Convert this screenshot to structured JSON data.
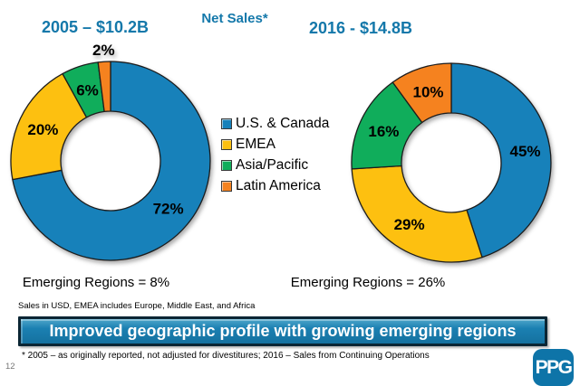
{
  "slide": {
    "net_sales_title": "Net Sales*",
    "sales_note": "Sales in USD, EMEA includes Europe, Middle East, and Africa",
    "banner_text": "Improved geographic profile with growing emerging regions",
    "footnote": "* 2005 – as originally reported, not adjusted for divestitures; 2016 – Sales from Continuing Operations",
    "page_number": "12",
    "logo_text": "PPG"
  },
  "colors": {
    "title_blue": "#1478aa",
    "banner_fill": "#1b80b2",
    "banner_border": "#0b2634",
    "logo_blue": "#0e74a8",
    "us_canada_blue": "#1781ba",
    "emea_yellow": "#fdc010",
    "asia_pacific_green": "#10ad5b",
    "latin_america_orange": "#f5821f"
  },
  "legend": {
    "items": [
      {
        "label": "U.S. & Canada",
        "color": "#1781ba"
      },
      {
        "label": "EMEA",
        "color": "#fdc010"
      },
      {
        "label": "Asia/Pacific",
        "color": "#10ad5b"
      },
      {
        "label": "Latin America",
        "color": "#f5821f"
      }
    ]
  },
  "chart_data": [
    {
      "type": "pie",
      "subtype": "donut",
      "title": "2005 – $10.2B",
      "categories": [
        "U.S. & Canada",
        "EMEA",
        "Asia/Pacific",
        "Latin America"
      ],
      "values": [
        72,
        20,
        6,
        2
      ],
      "unit": "%",
      "colors": [
        "#1781ba",
        "#fdc010",
        "#10ad5b",
        "#f5821f"
      ],
      "legend_position": "center-between-charts",
      "annotation": "Emerging Regions = 8%"
    },
    {
      "type": "pie",
      "subtype": "donut",
      "title": "2016 - $14.8B",
      "categories": [
        "U.S. & Canada",
        "EMEA",
        "Asia/Pacific",
        "Latin America"
      ],
      "values": [
        45,
        29,
        16,
        10
      ],
      "unit": "%",
      "colors": [
        "#1781ba",
        "#fdc010",
        "#10ad5b",
        "#f5821f"
      ],
      "legend_position": "center-between-charts",
      "annotation": "Emerging Regions = 26%"
    }
  ]
}
